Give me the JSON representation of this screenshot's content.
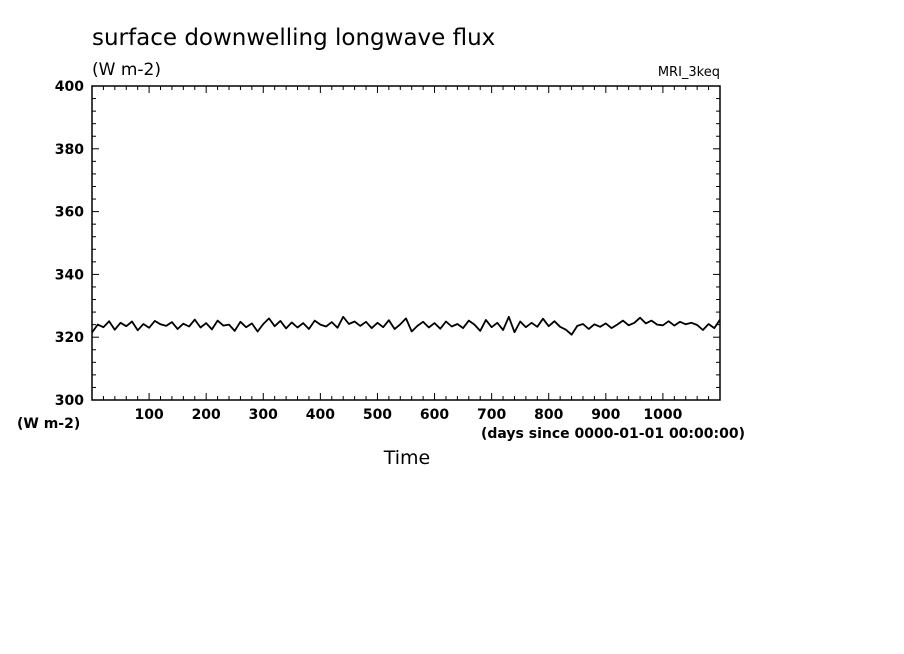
{
  "chart_data": {
    "type": "line",
    "title": "surface downwelling longwave flux",
    "subtitle": "(W m-2)",
    "model_label": "MRI_3keq",
    "ylabel_units": "(W m-2)",
    "xlabel": "Time",
    "x_units": "(days since 0000-01-01 00:00:00)",
    "xlim": [
      0,
      1100
    ],
    "ylim": [
      300,
      400
    ],
    "x_ticks": [
      100,
      200,
      300,
      400,
      500,
      600,
      700,
      800,
      900,
      1000
    ],
    "x_tick_labels": [
      "100",
      "200",
      "300",
      "400",
      "500",
      "600",
      "700",
      "800",
      "900",
      "1000"
    ],
    "y_ticks": [
      300,
      320,
      340,
      360,
      380,
      400
    ],
    "y_tick_labels": [
      "300",
      "320",
      "340",
      "360",
      "380",
      "400"
    ],
    "grid": false,
    "line_color": "#000000",
    "series": [
      {
        "x": [
          0,
          10,
          20,
          30,
          40,
          50,
          60,
          70,
          80,
          90,
          100,
          110,
          120,
          130,
          140,
          150,
          160,
          170,
          180,
          190,
          200,
          210,
          220,
          230,
          240,
          250,
          260,
          270,
          280,
          290,
          300,
          310,
          320,
          330,
          340,
          350,
          360,
          370,
          380,
          390,
          400,
          410,
          420,
          430,
          440,
          450,
          460,
          470,
          480,
          490,
          500,
          510,
          520,
          530,
          540,
          550,
          560,
          570,
          580,
          590,
          600,
          610,
          620,
          630,
          640,
          650,
          660,
          670,
          680,
          690,
          700,
          710,
          720,
          730,
          740,
          750,
          760,
          770,
          780,
          790,
          800,
          810,
          820,
          830,
          840,
          850,
          860,
          870,
          880,
          890,
          900,
          910,
          920,
          930,
          940,
          950,
          960,
          970,
          980,
          990,
          1000,
          1010,
          1020,
          1030,
          1040,
          1050,
          1060,
          1070,
          1080,
          1090,
          1100
        ],
        "y": [
          321.5,
          324.0,
          323.2,
          325.1,
          322.4,
          324.6,
          323.5,
          325.0,
          322.2,
          324.2,
          323.0,
          325.2,
          324.1,
          323.6,
          324.8,
          322.6,
          324.3,
          323.4,
          325.6,
          323.1,
          324.5,
          322.5,
          325.3,
          323.7,
          324.0,
          322.0,
          324.9,
          323.2,
          324.4,
          321.8,
          324.2,
          326.0,
          323.5,
          325.2,
          322.8,
          324.7,
          323.1,
          324.5,
          322.6,
          325.3,
          324.0,
          323.4,
          324.8,
          323.0,
          326.5,
          324.2,
          325.0,
          323.6,
          324.9,
          322.9,
          324.6,
          323.2,
          325.4,
          322.6,
          324.1,
          326.0,
          321.8,
          323.6,
          324.9,
          323.1,
          324.5,
          322.7,
          325.0,
          323.4,
          324.2,
          322.9,
          325.3,
          324.0,
          322.0,
          325.5,
          323.2,
          324.6,
          322.3,
          326.5,
          321.6,
          325.0,
          323.2,
          324.6,
          323.3,
          325.9,
          323.5,
          325.1,
          323.3,
          322.4,
          320.8,
          323.6,
          324.2,
          322.6,
          324.1,
          323.3,
          324.4,
          322.9,
          324.0,
          325.3,
          323.8,
          324.6,
          326.2,
          324.4,
          325.3,
          324.0,
          323.8,
          325.1,
          323.7,
          324.9,
          324.1,
          324.6,
          323.9,
          322.3,
          324.2,
          322.9,
          325.6
        ]
      }
    ]
  }
}
